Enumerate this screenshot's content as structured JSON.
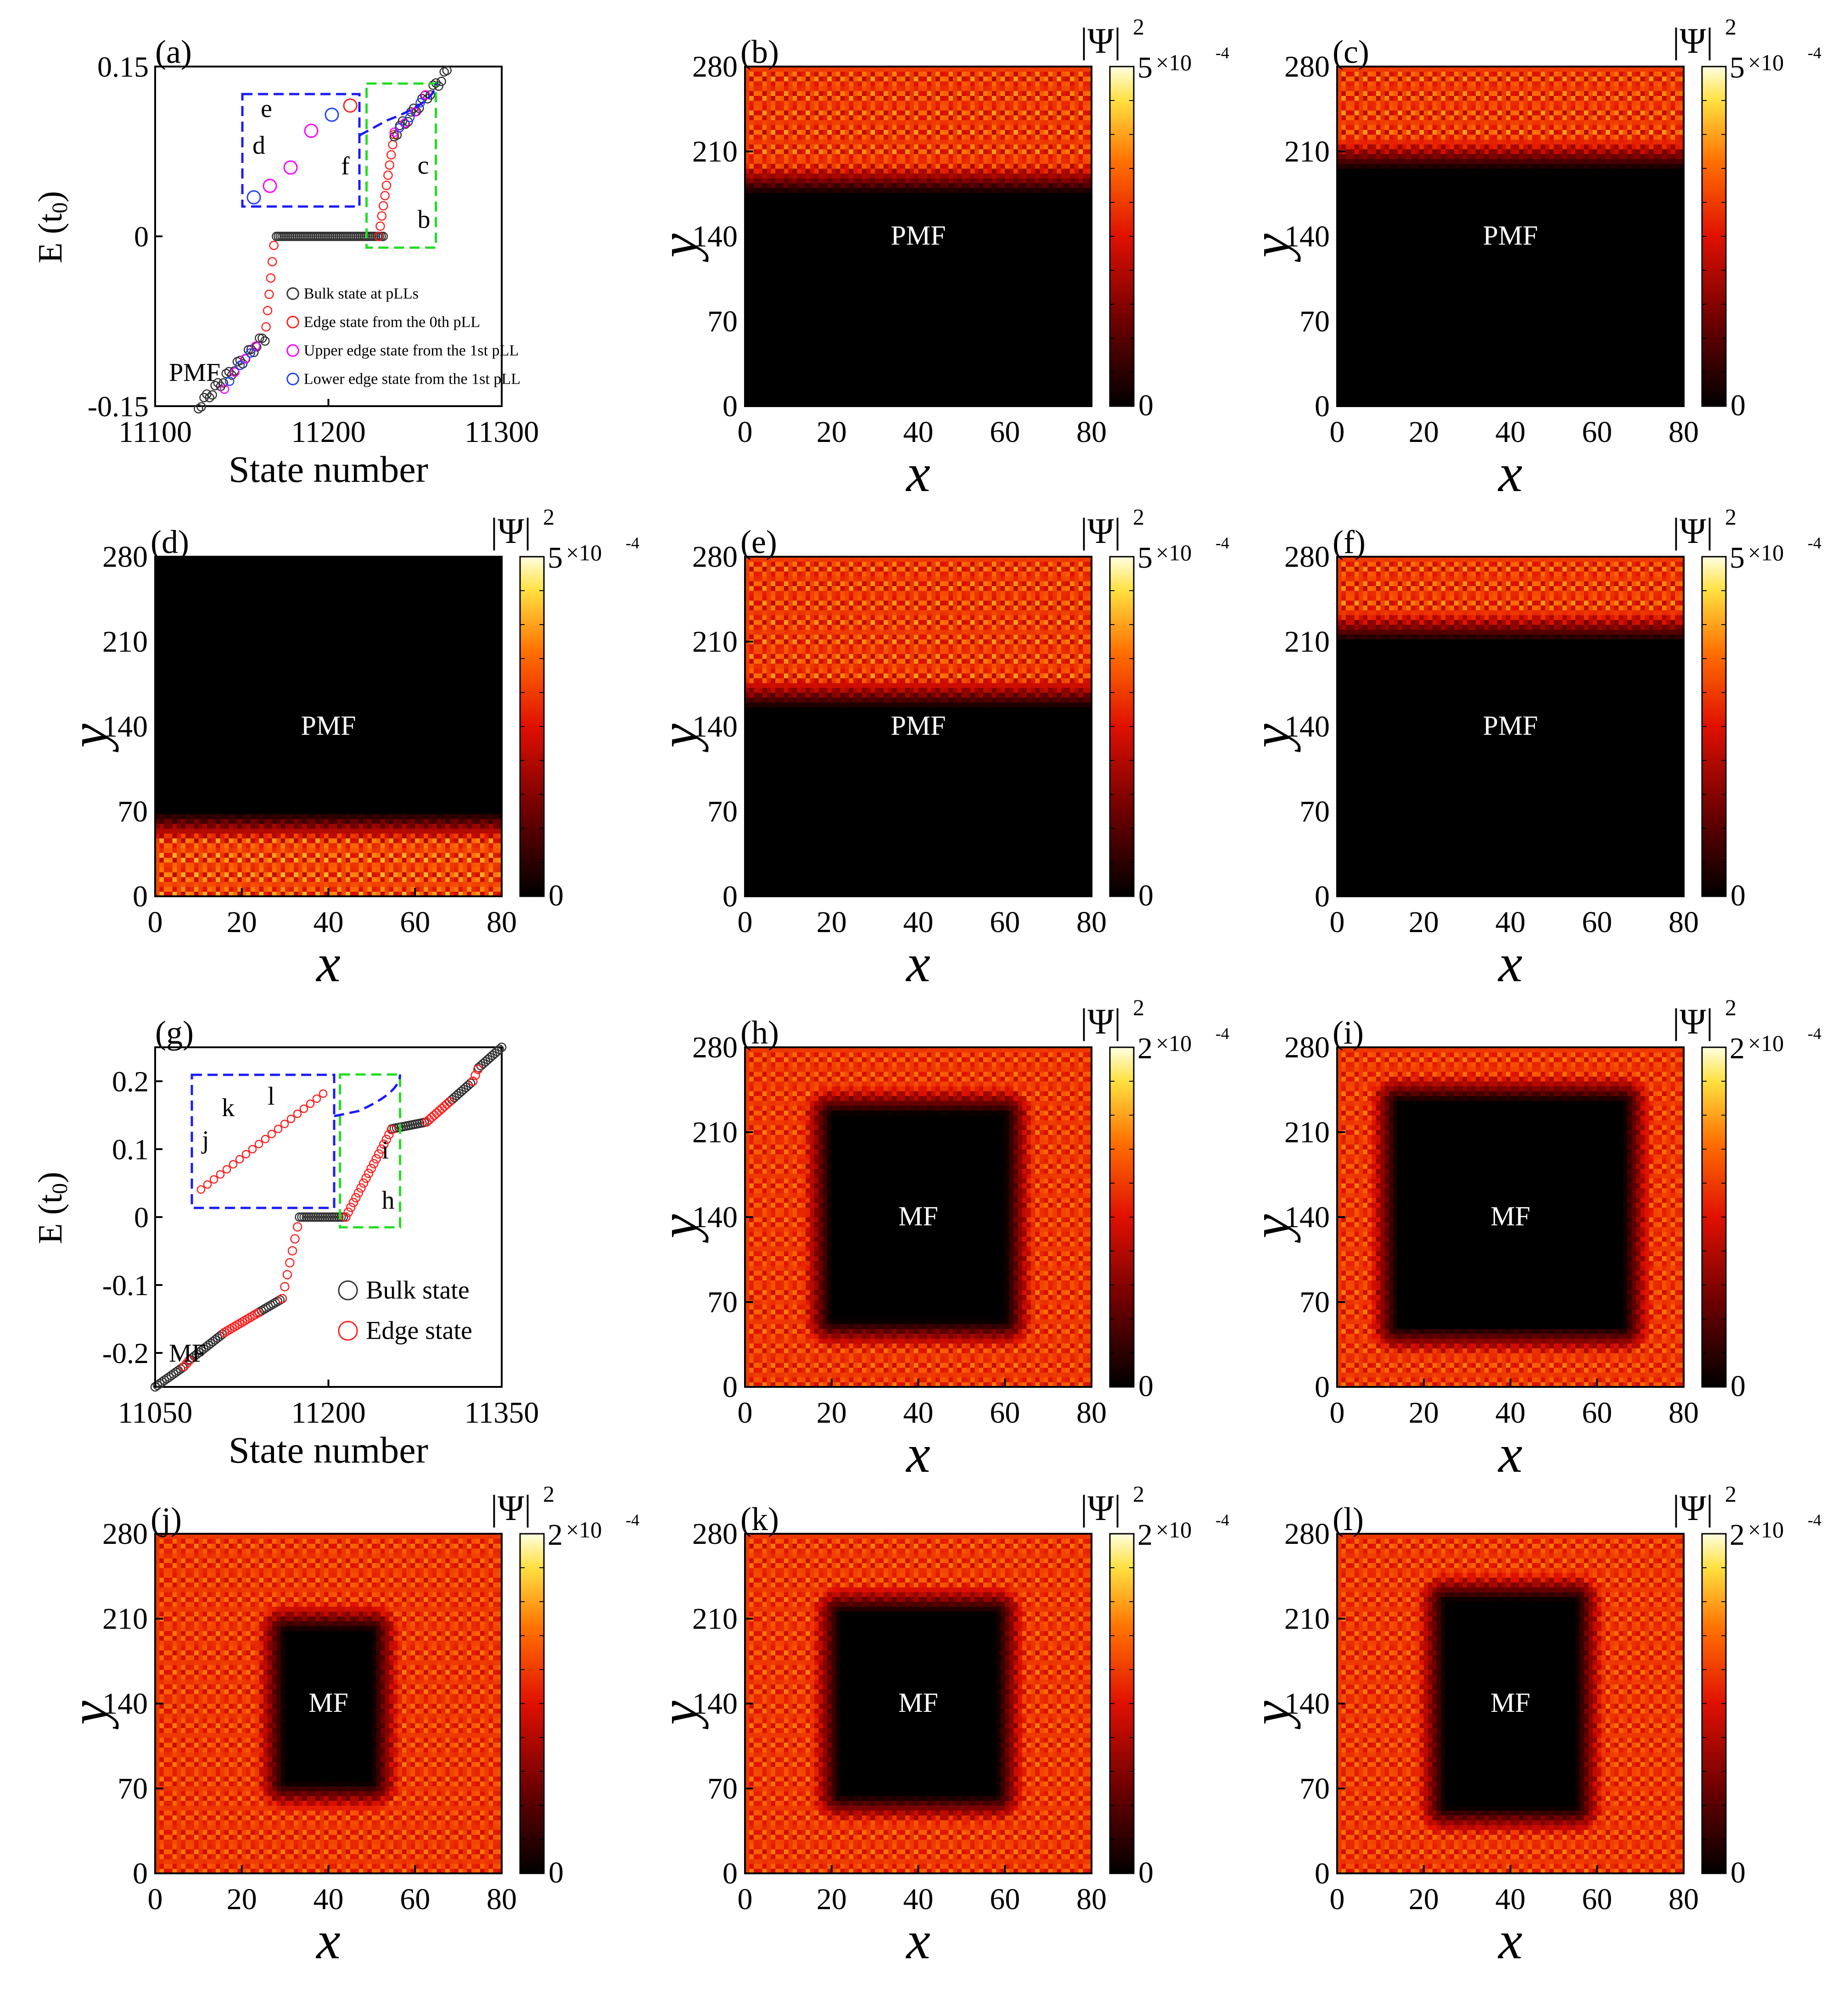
{
  "figure": {
    "bulk_color": "#333333",
    "edge0_color": "#ff2020",
    "upper1_color": "#ff00ff",
    "lower1_color": "#2040ff",
    "inset_box_color": "#1a1aff",
    "zoom_box_color": "#22dd22"
  },
  "chart_data": [
    {
      "id": "a",
      "type": "scatter",
      "panel_label": "(a)",
      "xlabel": "State number",
      "ylabel": "E (t",
      "ylabel_sub": "0",
      "ylabel_close": ")",
      "xlim": [
        11100,
        11300
      ],
      "ylim": [
        -0.15,
        0.15
      ],
      "xticks": [
        "11100",
        "11200",
        "11300"
      ],
      "yticks": [
        "-0.15",
        "0",
        "0.15"
      ],
      "ytick_values": [
        -0.15,
        0,
        0.15
      ],
      "field_label": "PMF",
      "legend": [
        {
          "label": "Bulk state at pLLs",
          "color": "#333333"
        },
        {
          "label": "Edge state from the 0th pLL",
          "color": "#ff2020"
        },
        {
          "label": "Upper edge state from the 1st pLL",
          "color": "#ff00ff"
        },
        {
          "label": "Lower edge state from the 1st pLL",
          "color": "#2040ff"
        }
      ],
      "series": [
        {
          "name": "Bulk state at pLLs",
          "x": [
            11128,
            11136,
            11144,
            11152,
            11160,
            11170,
            11176,
            11184,
            11192,
            11200,
            11208,
            11216,
            11222,
            11228,
            11234,
            11240,
            11248,
            11256,
            11264
          ],
          "y": [
            -0.145,
            -0.13,
            -0.115,
            -0.1,
            -0.09,
            0,
            0,
            0,
            0,
            0,
            0,
            0,
            0,
            0,
            0.09,
            0.1,
            0.115,
            0.13,
            0.145
          ]
        },
        {
          "name": "Edge state from the 0th pLL",
          "x": [
            11163,
            11164,
            11165,
            11166,
            11167,
            11168,
            11230,
            11231,
            11232,
            11233,
            11234,
            11235
          ],
          "y": [
            -0.075,
            -0.055,
            -0.03,
            -0.01,
            0.005,
            0.0,
            0.0,
            0.005,
            0.015,
            0.03,
            0.055,
            0.075
          ]
        },
        {
          "name": "Upper edge state from the 1st pLL",
          "x": [
            11140,
            11146,
            11152,
            11158,
            11238,
            11244,
            11250,
            11256
          ],
          "y": [
            -0.135,
            -0.12,
            -0.108,
            -0.097,
            0.092,
            0.1,
            0.11,
            0.125
          ]
        },
        {
          "name": "Lower edge state from the 1st pLL",
          "x": [
            11143,
            11149,
            11155,
            11241,
            11247,
            11253
          ],
          "y": [
            -0.128,
            -0.114,
            -0.103,
            0.096,
            0.105,
            0.118
          ]
        }
      ],
      "inset_labels": [
        "e",
        "d",
        "f"
      ],
      "arrow_labels": [
        "c",
        "b"
      ]
    },
    {
      "id": "g",
      "type": "scatter",
      "panel_label": "(g)",
      "xlabel": "State number",
      "ylabel": "E (t",
      "ylabel_sub": "0",
      "ylabel_close": ")",
      "xlim": [
        11050,
        11350
      ],
      "ylim": [
        -0.25,
        0.25
      ],
      "xticks": [
        "11050",
        "11200",
        "11350"
      ],
      "yticks": [
        "-0.2",
        "-0.1",
        "0",
        "0.1",
        "0.2"
      ],
      "ytick_values": [
        -0.2,
        -0.1,
        0,
        0.1,
        0.2
      ],
      "field_label": "MF",
      "legend": [
        {
          "label": "Bulk state",
          "color": "#333333"
        },
        {
          "label": "Edge state",
          "color": "#ff2020"
        }
      ],
      "inset_labels": [
        "l",
        "k",
        "j"
      ],
      "arrow_labels": [
        "i",
        "h"
      ]
    }
  ],
  "maps": [
    {
      "id": "b",
      "panel_label": "(b)",
      "field": "PMF",
      "cmax": "5",
      "pattern": "top",
      "lo": 175,
      "hi": 280
    },
    {
      "id": "c",
      "panel_label": "(c)",
      "field": "PMF",
      "cmax": "5",
      "pattern": "top",
      "lo": 195,
      "hi": 280
    },
    {
      "id": "d",
      "panel_label": "(d)",
      "field": "PMF",
      "cmax": "5",
      "pattern": "bottom",
      "lo": 0,
      "hi": 70
    },
    {
      "id": "e",
      "panel_label": "(e)",
      "field": "PMF",
      "cmax": "5",
      "pattern": "top",
      "lo": 155,
      "hi": 280
    },
    {
      "id": "f",
      "panel_label": "(f)",
      "field": "PMF",
      "cmax": "5",
      "pattern": "top",
      "lo": 210,
      "hi": 280
    },
    {
      "id": "h",
      "panel_label": "(h)",
      "field": "MF",
      "cmax": "2",
      "pattern": "ring",
      "inner": [
        20,
        60,
        55,
        225
      ]
    },
    {
      "id": "i",
      "panel_label": "(i)",
      "field": "MF",
      "cmax": "2",
      "pattern": "ring",
      "inner": [
        14,
        66,
        50,
        235
      ]
    },
    {
      "id": "j",
      "panel_label": "(j)",
      "field": "MF",
      "cmax": "2",
      "pattern": "ring",
      "inner": [
        30,
        50,
        75,
        200
      ]
    },
    {
      "id": "k",
      "panel_label": "(k)",
      "field": "MF",
      "cmax": "2",
      "pattern": "ring",
      "inner": [
        22,
        58,
        65,
        215
      ]
    },
    {
      "id": "l",
      "panel_label": "(l)",
      "field": "MF",
      "cmax": "2",
      "pattern": "ring",
      "inner": [
        25,
        55,
        55,
        225
      ]
    }
  ],
  "map_axes": {
    "xlabel": "x",
    "ylabel": "y",
    "xticks": [
      "0",
      "20",
      "40",
      "60",
      "80"
    ],
    "yticks": [
      "0",
      "70",
      "140",
      "210",
      "280"
    ],
    "colorbar_title": "|Ψ|",
    "colorbar_title_sup": "2",
    "colorbar_exp": "×10",
    "colorbar_exp_sup": "-4",
    "colorbar_min": "0"
  }
}
